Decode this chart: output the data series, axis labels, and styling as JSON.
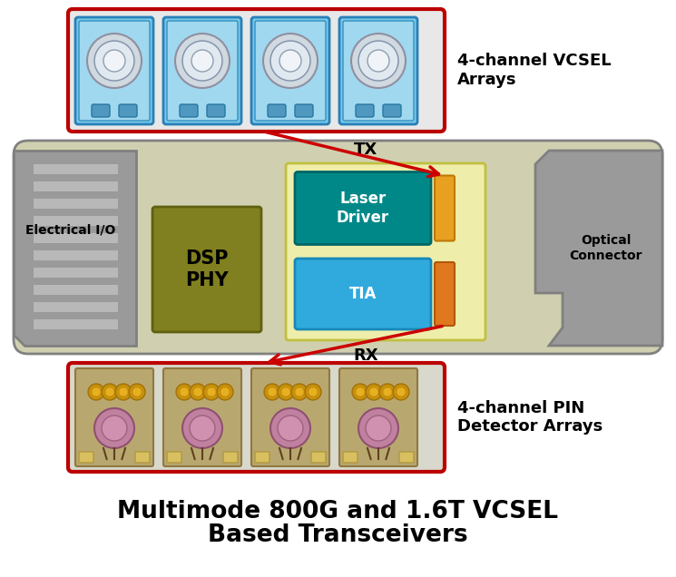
{
  "title_line1": "Multimode 800G and 1.6T VCSEL",
  "title_line2": "Based Transceivers",
  "title_fontsize": 19,
  "vcsel_label": "4-channel VCSEL\nArrays",
  "pin_label": "4-channel PIN\nDetector Arrays",
  "tx_label": "TX",
  "rx_label": "RX",
  "dsp_label": "DSP\nPHY",
  "laser_label": "Laser\nDriver",
  "tia_label": "TIA",
  "elec_label": "Electrical I/O",
  "opt_label": "Optical\nConnector",
  "main_body_color": "#d0d0b0",
  "main_body_edge": "#808080",
  "left_block_color": "#9a9a9a",
  "right_block_color": "#9a9a9a",
  "dsp_color": "#808020",
  "inner_box_color": "#eeeeaa",
  "laser_driver_color": "#008888",
  "tia_color": "#30aadd",
  "orange_ld_color": "#e8a020",
  "orange_tia_color": "#e07820",
  "vcsel_box_border": "#bb0000",
  "vcsel_box_bg": "#e8e8e8",
  "pin_box_border": "#bb0000",
  "pin_box_bg": "#d8d8cc",
  "arrow_color": "#cc0000",
  "stripe_color": "#b8b8b8",
  "stripe_dark": "#888888"
}
